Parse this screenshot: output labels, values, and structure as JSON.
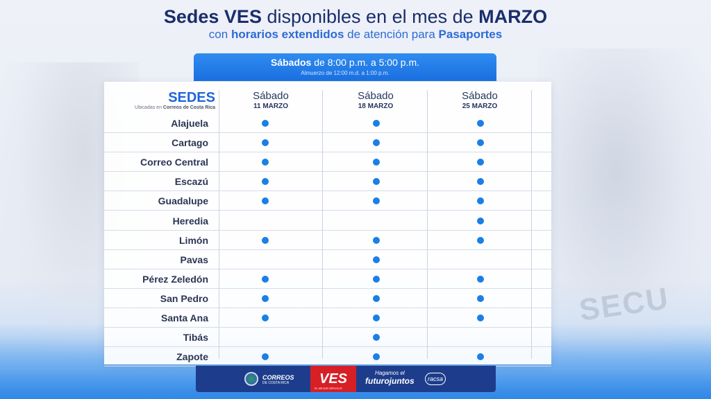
{
  "header": {
    "title_b1": "Sedes VES",
    "title_mid": " disponibles en el mes de ",
    "title_b2": "MARZO",
    "sub_pre": "con ",
    "sub_b1": "horarios extendidos",
    "sub_mid": " de atención para ",
    "sub_b2": "Pasaportes"
  },
  "banner": {
    "bold": "Sábados",
    "rest": " de 8:00 p.m. a 5:00 p.m.",
    "sub": "Almuerzo de 12:00 m.d. a 1:00 p.m."
  },
  "table": {
    "sedes_title": "SEDES",
    "sedes_sub_pre": "Ubicadas en ",
    "sedes_sub_bold": "Correos de Costa Rica",
    "columns": [
      {
        "day": "Sábado",
        "date": "11 MARZO"
      },
      {
        "day": "Sábado",
        "date": "18 MARZO"
      },
      {
        "day": "Sábado",
        "date": "25 MARZO"
      }
    ],
    "rows": [
      {
        "name": "Alajuela",
        "avail": [
          true,
          true,
          true
        ]
      },
      {
        "name": "Cartago",
        "avail": [
          true,
          true,
          true
        ]
      },
      {
        "name": "Correo Central",
        "avail": [
          true,
          true,
          true
        ]
      },
      {
        "name": "Escazú",
        "avail": [
          true,
          true,
          true
        ]
      },
      {
        "name": "Guadalupe",
        "avail": [
          true,
          true,
          true
        ]
      },
      {
        "name": "Heredia",
        "avail": [
          false,
          false,
          true
        ]
      },
      {
        "name": "Limón",
        "avail": [
          true,
          true,
          true
        ]
      },
      {
        "name": "Pavas",
        "avail": [
          false,
          true,
          false
        ]
      },
      {
        "name": "Pérez Zeledón",
        "avail": [
          true,
          true,
          true
        ]
      },
      {
        "name": "San Pedro",
        "avail": [
          true,
          true,
          true
        ]
      },
      {
        "name": "Santa Ana",
        "avail": [
          true,
          true,
          true
        ]
      },
      {
        "name": "Tibás",
        "avail": [
          false,
          true,
          false
        ]
      },
      {
        "name": "Zapote",
        "avail": [
          true,
          true,
          true
        ]
      }
    ]
  },
  "footer": {
    "correos": "CORREOS",
    "correos_sub": "DE COSTA RICA",
    "ves": "VES",
    "ves_sub": "EL MEJOR SERVICIO",
    "futuro_a": "Hagamos el",
    "futuro_b": "futurojuntos",
    "racsa": "racsa"
  },
  "background": {
    "badge_text": "SECU"
  },
  "colors": {
    "title": "#1b2e6b",
    "accent": "#2d6bd6",
    "dot": "#1a7fe6",
    "banner": "#1a6fe0",
    "footer": "#1d3d8c",
    "ves_red": "#d71f26"
  }
}
